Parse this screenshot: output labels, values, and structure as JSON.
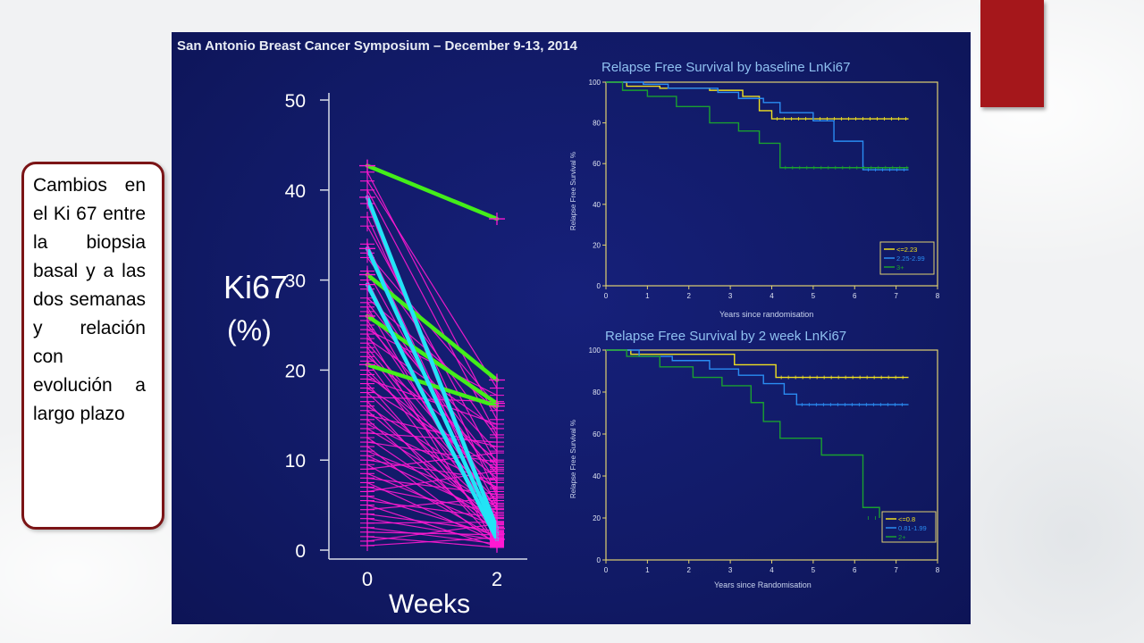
{
  "caption": {
    "text": "Cambios en el Ki 67 entre la biopsia basal y a las dos semanas y relación con evolución a largo plazo"
  },
  "slide": {
    "header": "San Antonio Breast Cancer Symposium – December 9-13, 2014"
  },
  "colors": {
    "accent_red": "#a5171b",
    "caption_border": "#7b1416",
    "slide_bg": "#111a66",
    "magenta": "#ff19d2",
    "green": "#44ee1a",
    "cyan": "#22e4f6",
    "km_yellow": "#f0e020",
    "km_blue": "#2a8cf2",
    "km_green": "#1aa030"
  },
  "chart_data": [
    {
      "type": "line",
      "title": "",
      "ylabel_line1": "Ki67",
      "ylabel_line2": "(%)",
      "xlabel": "Weeks",
      "x_categories": [
        "0",
        "2"
      ],
      "y_ticks": [
        "0",
        "10",
        "20",
        "30",
        "40",
        "50"
      ],
      "ylim": [
        0,
        50
      ],
      "highlight_series": [
        {
          "group": "green",
          "values": [
            42.7,
            36.8
          ]
        },
        {
          "group": "green",
          "values": [
            30.6,
            18.9
          ]
        },
        {
          "group": "green",
          "values": [
            26.0,
            16.3
          ]
        },
        {
          "group": "green",
          "values": [
            20.6,
            16.0
          ]
        },
        {
          "group": "cyan",
          "values": [
            39.2,
            2.4
          ]
        },
        {
          "group": "cyan",
          "values": [
            33.5,
            1.8
          ]
        },
        {
          "group": "cyan",
          "values": [
            29.5,
            1.2
          ]
        }
      ],
      "background_series": [
        [
          38.5,
          2.0
        ],
        [
          37.0,
          6.0
        ],
        [
          36.0,
          9.5
        ],
        [
          34.0,
          3.0
        ],
        [
          32.5,
          12.5
        ],
        [
          31.0,
          5.0
        ],
        [
          30.0,
          1.0
        ],
        [
          29.0,
          7.5
        ],
        [
          28.0,
          15.5
        ],
        [
          27.0,
          2.5
        ],
        [
          26.5,
          11.0
        ],
        [
          25.5,
          4.5
        ],
        [
          25.0,
          8.5
        ],
        [
          24.0,
          0.5
        ],
        [
          23.5,
          13.5
        ],
        [
          23.0,
          6.5
        ],
        [
          22.0,
          3.5
        ],
        [
          21.5,
          10.0
        ],
        [
          21.0,
          1.5
        ],
        [
          20.0,
          5.5
        ],
        [
          19.5,
          8.0
        ],
        [
          19.0,
          14.0
        ],
        [
          18.5,
          2.2
        ],
        [
          18.0,
          9.0
        ],
        [
          17.5,
          4.0
        ],
        [
          17.0,
          16.5
        ],
        [
          16.5,
          0.8
        ],
        [
          16.0,
          6.8
        ],
        [
          15.5,
          3.2
        ],
        [
          15.0,
          11.5
        ],
        [
          14.5,
          1.9
        ],
        [
          14.0,
          7.0
        ],
        [
          13.5,
          4.8
        ],
        [
          13.0,
          12.0
        ],
        [
          12.5,
          2.8
        ],
        [
          12.0,
          9.8
        ],
        [
          11.5,
          0.6
        ],
        [
          11.0,
          5.2
        ],
        [
          10.5,
          3.8
        ],
        [
          10.0,
          7.8
        ],
        [
          9.5,
          1.3
        ],
        [
          9.0,
          10.8
        ],
        [
          8.5,
          2.6
        ],
        [
          8.0,
          6.2
        ],
        [
          7.5,
          0.9
        ],
        [
          7.0,
          4.2
        ],
        [
          6.5,
          8.8
        ],
        [
          6.0,
          1.6
        ],
        [
          5.5,
          3.6
        ],
        [
          5.0,
          0.4
        ],
        [
          4.5,
          5.8
        ],
        [
          4.0,
          2.1
        ],
        [
          3.5,
          1.1
        ],
        [
          3.0,
          3.1
        ],
        [
          2.5,
          0.7
        ],
        [
          2.0,
          1.7
        ],
        [
          1.5,
          0.3
        ],
        [
          1.0,
          2.9
        ],
        [
          0.5,
          1.4
        ],
        [
          42.0,
          14.5
        ],
        [
          41.0,
          18.0
        ],
        [
          40.0,
          12.8
        ],
        [
          33.0,
          16.0
        ],
        [
          27.5,
          9.2
        ],
        [
          24.5,
          17.2
        ],
        [
          22.5,
          4.6
        ]
      ]
    },
    {
      "type": "line",
      "title": "Relapse Free Survival by baseline LnKi67",
      "xlabel": "Years since randomisation",
      "ylabel": "Relapse Free Survival %",
      "x_ticks": [
        "0",
        "1",
        "2",
        "3",
        "4",
        "5",
        "6",
        "7",
        "8"
      ],
      "y_ticks": [
        "0",
        "20",
        "40",
        "60",
        "80",
        "100"
      ],
      "xlim": [
        0,
        8
      ],
      "ylim": [
        0,
        100
      ],
      "legend": [
        "<=2.23",
        "2.25-2.99",
        "3+"
      ],
      "series": [
        {
          "name": "<=2.23",
          "steps": [
            [
              0,
              100
            ],
            [
              0.5,
              98
            ],
            [
              1.3,
              97
            ],
            [
              2.5,
              96
            ],
            [
              3.3,
              93
            ],
            [
              3.7,
              86
            ],
            [
              4.0,
              82
            ],
            [
              7.3,
              82
            ]
          ]
        },
        {
          "name": "2.25-2.99",
          "steps": [
            [
              0,
              100
            ],
            [
              0.9,
              99
            ],
            [
              1.5,
              97
            ],
            [
              2.7,
              95
            ],
            [
              3.2,
              92
            ],
            [
              3.8,
              90
            ],
            [
              4.2,
              85
            ],
            [
              5.0,
              81
            ],
            [
              5.5,
              71
            ],
            [
              6.2,
              57
            ],
            [
              7.3,
              57
            ]
          ]
        },
        {
          "name": "3+",
          "steps": [
            [
              0,
              100
            ],
            [
              0.4,
              96
            ],
            [
              1.0,
              93
            ],
            [
              1.7,
              88
            ],
            [
              2.5,
              80
            ],
            [
              3.2,
              76
            ],
            [
              3.7,
              70
            ],
            [
              4.2,
              58
            ],
            [
              7.3,
              58
            ]
          ]
        }
      ]
    },
    {
      "type": "line",
      "title": "Relapse Free Survival by 2 week LnKi67",
      "xlabel": "Years since Randomisation",
      "ylabel": "Relapse Free Survival %",
      "x_ticks": [
        "0",
        "1",
        "2",
        "3",
        "4",
        "5",
        "6",
        "7",
        "8"
      ],
      "y_ticks": [
        "0",
        "20",
        "40",
        "60",
        "80",
        "100"
      ],
      "xlim": [
        0,
        8
      ],
      "ylim": [
        0,
        100
      ],
      "legend": [
        "<=0.8",
        "0.81-1.99",
        "2+"
      ],
      "series": [
        {
          "name": "<=0.8",
          "steps": [
            [
              0,
              100
            ],
            [
              0.6,
              98
            ],
            [
              3.1,
              93
            ],
            [
              4.1,
              87
            ],
            [
              7.3,
              87
            ]
          ]
        },
        {
          "name": "0.81-1.99",
          "steps": [
            [
              0,
              100
            ],
            [
              0.8,
              97
            ],
            [
              1.6,
              95
            ],
            [
              2.5,
              91
            ],
            [
              3.2,
              88
            ],
            [
              3.8,
              84
            ],
            [
              4.3,
              79
            ],
            [
              4.6,
              74
            ],
            [
              7.3,
              74
            ]
          ]
        },
        {
          "name": "2+",
          "steps": [
            [
              0,
              100
            ],
            [
              0.5,
              97
            ],
            [
              1.3,
              92
            ],
            [
              2.1,
              87
            ],
            [
              2.8,
              83
            ],
            [
              3.5,
              75
            ],
            [
              3.8,
              66
            ],
            [
              4.2,
              58
            ],
            [
              5.2,
              50
            ],
            [
              6.2,
              25
            ],
            [
              6.6,
              20
            ]
          ]
        }
      ]
    }
  ]
}
